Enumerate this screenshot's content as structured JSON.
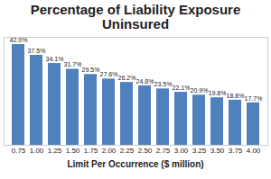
{
  "chart_data": {
    "type": "bar",
    "title": "Percentage of Liability Exposure Uninsured",
    "x_label": "Limit Per Occurrence ($ million)",
    "categories": [
      "0.75",
      "1.00",
      "1.25",
      "1.50",
      "1.75",
      "2.00",
      "2.25",
      "2.50",
      "2.75",
      "3.00",
      "3.25",
      "3.50",
      "3.75",
      "4.00"
    ],
    "values": [
      42.0,
      37.5,
      34.1,
      31.7,
      29.5,
      27.6,
      26.2,
      24.8,
      23.5,
      22.1,
      20.9,
      19.8,
      18.8,
      17.7
    ],
    "value_labels": [
      "42.0%",
      "37.5%",
      "34.1%",
      "31.7%",
      "29.5%",
      "27.6%",
      "26.2%",
      "24.8%",
      "23.5%",
      "22.1%",
      "20.9%",
      "19.8%",
      "18.8%",
      "17.7%"
    ],
    "color": "#4f81bd",
    "ylim": [
      0,
      45
    ],
    "data_labels": true,
    "tick_labels": "x",
    "grid": false
  }
}
